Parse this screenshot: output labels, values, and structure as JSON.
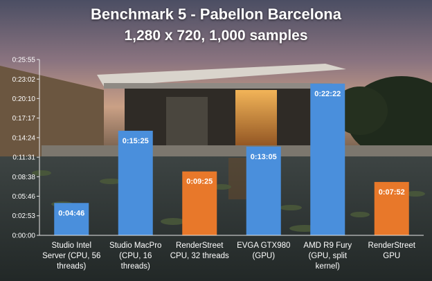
{
  "chart_data": {
    "type": "bar",
    "title": "Benchmark 5 - Pabellon Barcelona",
    "subtitle": "1,280 x 720, 1,000 samples",
    "xlabel": "",
    "ylabel": "",
    "y_unit": "seconds (shown as h:mm:ss)",
    "ylim": [
      0,
      1555
    ],
    "y_ticks": [
      "0:00:00",
      "0:02:53",
      "0:05:46",
      "0:08:38",
      "0:11:31",
      "0:14:24",
      "0:17:17",
      "0:20:10",
      "0:23:02",
      "0:25:55"
    ],
    "y_tick_values": [
      0,
      173,
      346,
      518,
      691,
      864,
      1037,
      1210,
      1382,
      1555
    ],
    "categories": [
      [
        "Studio Intel",
        "Server (CPU, 56",
        "threads)"
      ],
      [
        "Studio MacPro",
        "(CPU, 16",
        "threads)"
      ],
      [
        "RenderStreet",
        "CPU, 32 threads"
      ],
      [
        "EVGA GTX980",
        "(GPU)"
      ],
      [
        "AMD R9 Fury",
        "(GPU, split",
        "kernel)"
      ],
      [
        "RenderStreet",
        "GPU"
      ]
    ],
    "values": [
      286,
      925,
      565,
      785,
      1342,
      472
    ],
    "data_labels": [
      "0:04:46",
      "0:15:25",
      "0:09:25",
      "0:13:05",
      "0:22:22",
      "0:07:52"
    ],
    "bar_colors": [
      "#4a8fdc",
      "#4a8fdc",
      "#e8782a",
      "#4a8fdc",
      "#4a8fdc",
      "#e8782a"
    ],
    "grid": false,
    "legend": "none"
  },
  "colors": {
    "blue_bar": "#4a8fdc",
    "orange_bar": "#e8782a",
    "text": "#ffffff"
  }
}
